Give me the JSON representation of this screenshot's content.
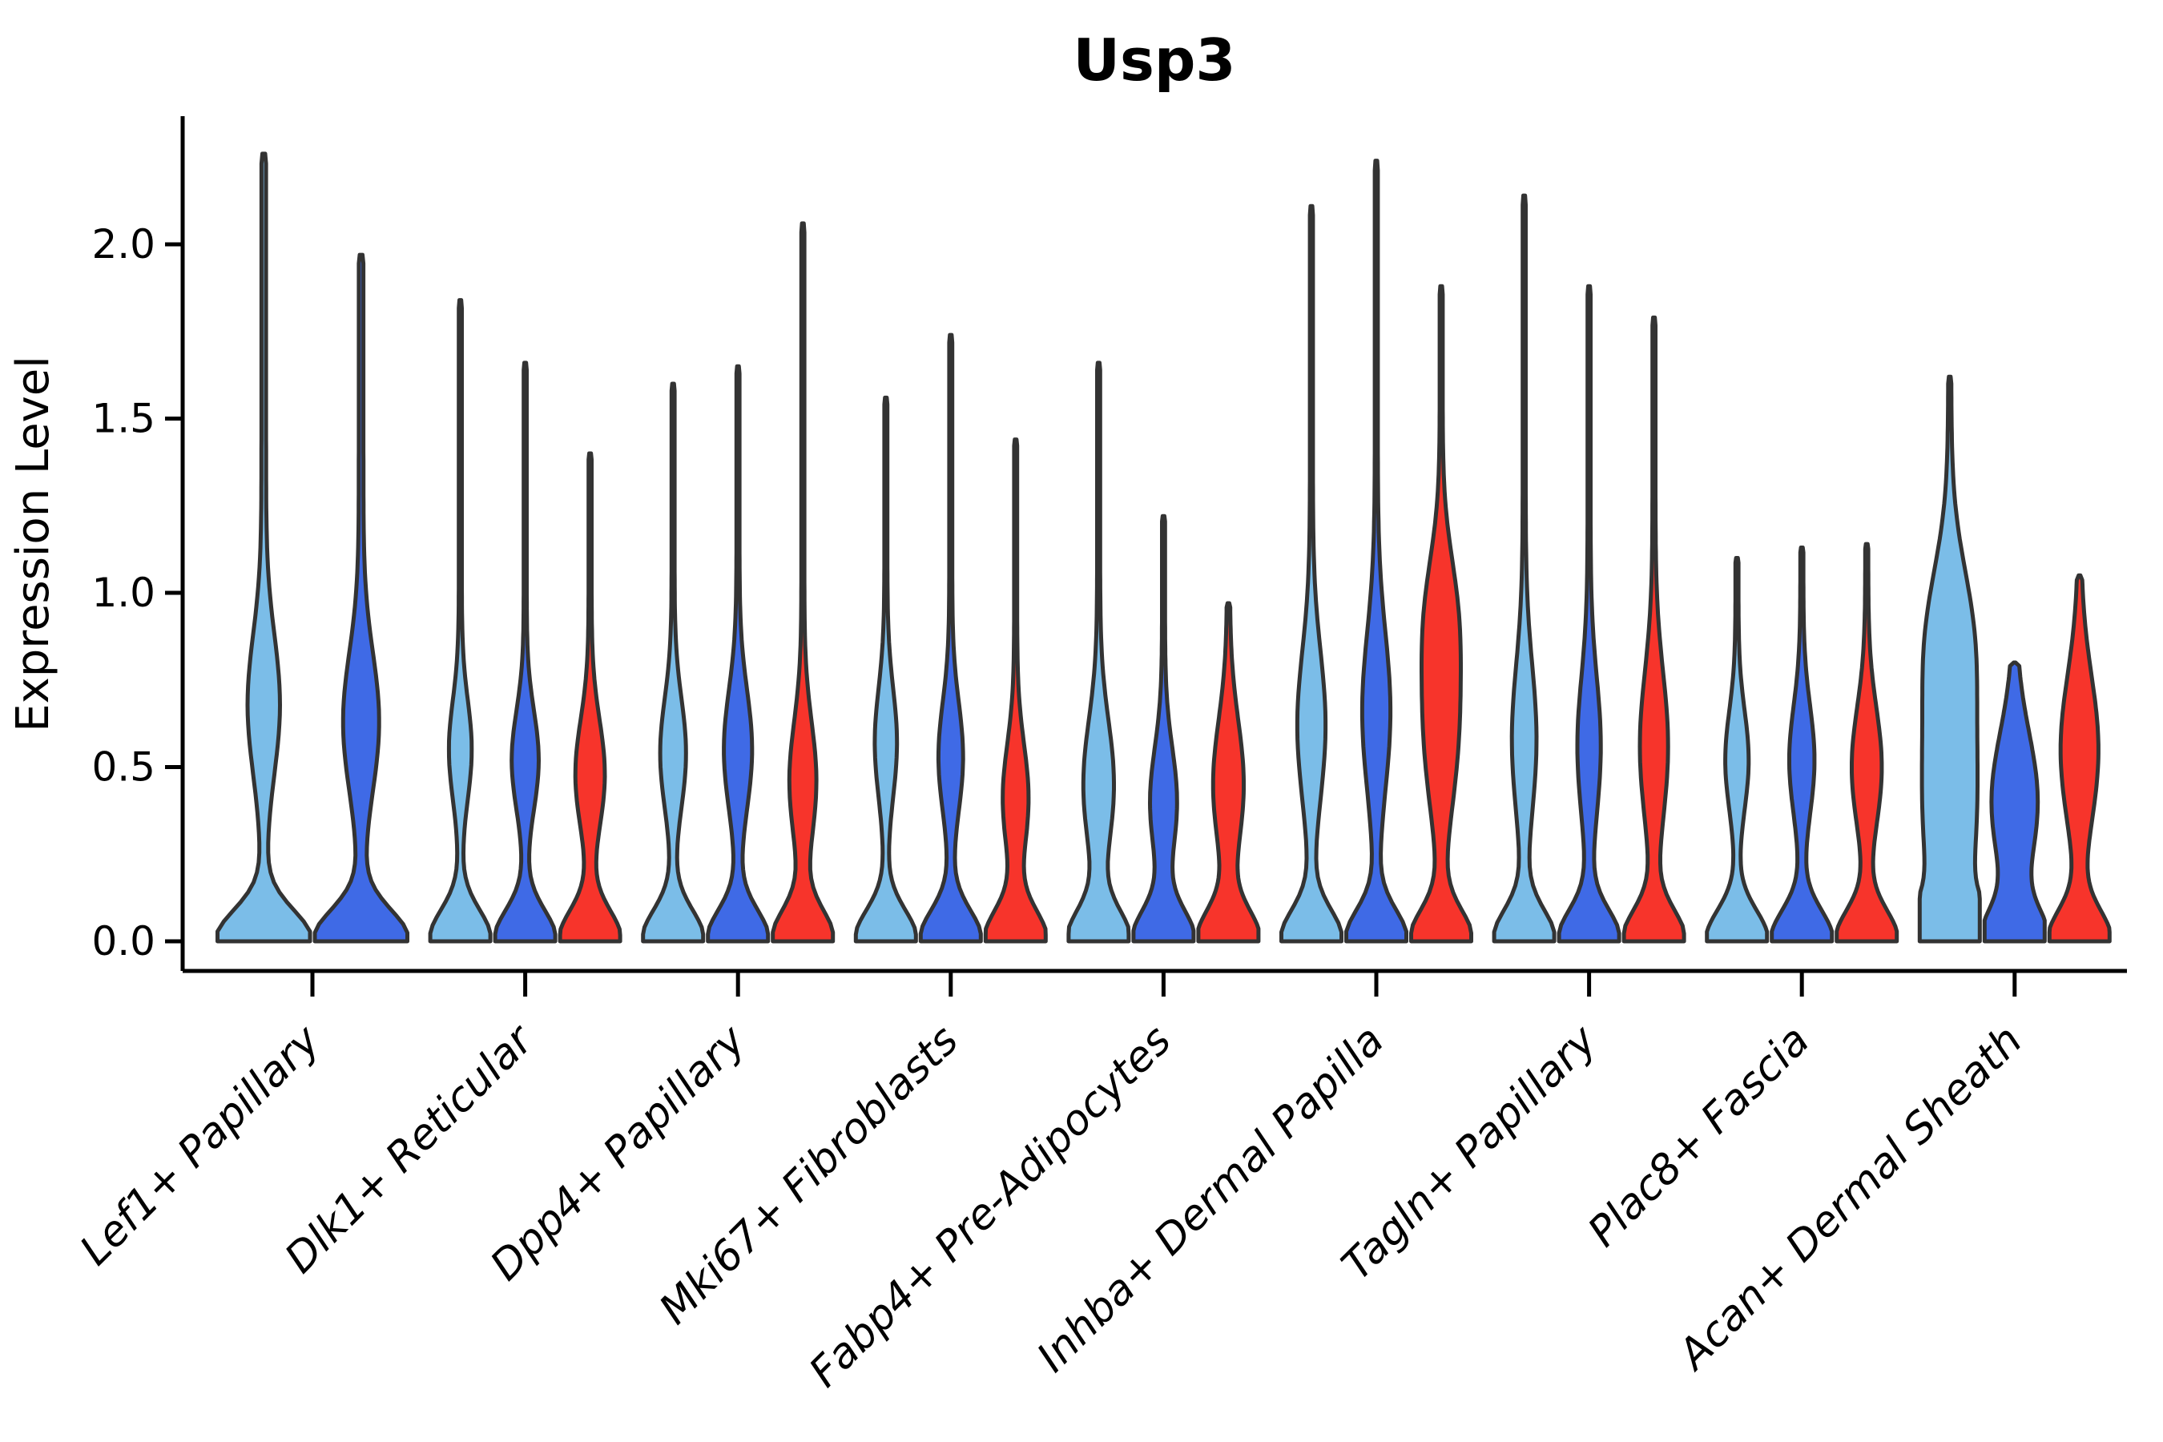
{
  "chart_data": {
    "type": "violin",
    "title": "Usp3",
    "xlabel": "",
    "ylabel": "Expression Level",
    "ylim": [
      -0.09,
      2.37
    ],
    "yticks": [
      0.0,
      0.5,
      1.0,
      1.5,
      2.0
    ],
    "ytick_labels": [
      "0.0",
      "0.5",
      "1.0",
      "1.5",
      "2.0"
    ],
    "grid": false,
    "legend_position": "none",
    "palette": {
      "hue_1": "#7BBDE8",
      "hue_2": "#3F6AE6",
      "hue_3": "#F7342B",
      "outline": "#333333",
      "axis": "#000000"
    },
    "categories": [
      "Lef1+ Papillary",
      "Dlk1+ Reticular",
      "Dpp4+ Papillary",
      "Mki67+ Fibroblasts",
      "Fabp4+ Pre-Adipocytes",
      "Inhba+ Dermal Papilla",
      "Tagln+ Papillary",
      "Plac8+ Fascia",
      "Acan+ Dermal Sheath"
    ],
    "groups": [
      {
        "category": "Lef1+ Papillary",
        "violins": [
          {
            "series": "hue_1",
            "max": 2.26,
            "bulge_center": 0.68,
            "bulge_width": 0.3,
            "bulge_spread": 0.28
          },
          {
            "series": "hue_2",
            "max": 1.97,
            "bulge_center": 0.63,
            "bulge_width": 0.34,
            "bulge_spread": 0.28
          }
        ]
      },
      {
        "category": "Dlk1+ Reticular",
        "violins": [
          {
            "series": "hue_1",
            "max": 1.84,
            "bulge_center": 0.55,
            "bulge_width": 0.33,
            "bulge_spread": 0.2
          },
          {
            "series": "hue_2",
            "max": 1.66,
            "bulge_center": 0.52,
            "bulge_width": 0.4,
            "bulge_spread": 0.2
          },
          {
            "series": "hue_3",
            "max": 1.4,
            "bulge_center": 0.48,
            "bulge_width": 0.44,
            "bulge_spread": 0.22
          }
        ]
      },
      {
        "category": "Dpp4+ Papillary",
        "violins": [
          {
            "series": "hue_1",
            "max": 1.6,
            "bulge_center": 0.54,
            "bulge_width": 0.38,
            "bulge_spread": 0.22
          },
          {
            "series": "hue_2",
            "max": 1.65,
            "bulge_center": 0.55,
            "bulge_width": 0.42,
            "bulge_spread": 0.24
          },
          {
            "series": "hue_3",
            "max": 2.06,
            "bulge_center": 0.46,
            "bulge_width": 0.4,
            "bulge_spread": 0.24
          }
        ]
      },
      {
        "category": "Mki67+ Fibroblasts",
        "violins": [
          {
            "series": "hue_1",
            "max": 1.56,
            "bulge_center": 0.57,
            "bulge_width": 0.32,
            "bulge_spread": 0.22
          },
          {
            "series": "hue_2",
            "max": 1.74,
            "bulge_center": 0.53,
            "bulge_width": 0.36,
            "bulge_spread": 0.22
          },
          {
            "series": "hue_3",
            "max": 1.44,
            "bulge_center": 0.41,
            "bulge_width": 0.38,
            "bulge_spread": 0.22
          }
        ]
      },
      {
        "category": "Fabp4+ Pre-Adipocytes",
        "violins": [
          {
            "series": "hue_1",
            "max": 1.66,
            "bulge_center": 0.45,
            "bulge_width": 0.46,
            "bulge_spread": 0.26
          },
          {
            "series": "hue_2",
            "max": 1.22,
            "bulge_center": 0.4,
            "bulge_width": 0.4,
            "bulge_spread": 0.22
          },
          {
            "series": "hue_3",
            "max": 0.97,
            "bulge_center": 0.45,
            "bulge_width": 0.46,
            "bulge_spread": 0.26
          }
        ]
      },
      {
        "category": "Inhba+ Dermal Papilla",
        "violins": [
          {
            "series": "hue_1",
            "max": 2.11,
            "bulge_center": 0.62,
            "bulge_width": 0.42,
            "bulge_spread": 0.3
          },
          {
            "series": "hue_2",
            "max": 2.24,
            "bulge_center": 0.66,
            "bulge_width": 0.42,
            "bulge_spread": 0.32
          },
          {
            "series": "hue_3",
            "max": 1.88,
            "bulge_center": 0.6,
            "bulge_width": 0.5,
            "bulge_spread": 0.32,
            "bulge2_center": 0.95,
            "bulge2_width": 0.38,
            "bulge2_spread": 0.25
          }
        ]
      },
      {
        "category": "Tagln+ Papillary",
        "violins": [
          {
            "series": "hue_1",
            "max": 2.14,
            "bulge_center": 0.58,
            "bulge_width": 0.36,
            "bulge_spread": 0.3
          },
          {
            "series": "hue_2",
            "max": 1.88,
            "bulge_center": 0.56,
            "bulge_width": 0.34,
            "bulge_spread": 0.28
          },
          {
            "series": "hue_3",
            "max": 1.79,
            "bulge_center": 0.56,
            "bulge_width": 0.42,
            "bulge_spread": 0.3
          }
        ]
      },
      {
        "category": "Plac8+ Fascia",
        "violins": [
          {
            "series": "hue_1",
            "max": 1.1,
            "bulge_center": 0.52,
            "bulge_width": 0.34,
            "bulge_spread": 0.2
          },
          {
            "series": "hue_2",
            "max": 1.13,
            "bulge_center": 0.52,
            "bulge_width": 0.37,
            "bulge_spread": 0.22
          },
          {
            "series": "hue_3",
            "max": 1.14,
            "bulge_center": 0.5,
            "bulge_width": 0.45,
            "bulge_spread": 0.24
          }
        ]
      },
      {
        "category": "Acan+ Dermal Sheath",
        "violins": [
          {
            "series": "hue_1",
            "max": 1.62,
            "bulge_center": 0.4,
            "bulge_width": 0.85,
            "bulge_spread": 0.5,
            "bulge2_center": 0.9,
            "bulge2_width": 0.45,
            "bulge2_spread": 0.28
          },
          {
            "series": "hue_2",
            "max": 0.8,
            "bulge_center": 0.4,
            "bulge_width": 0.72,
            "bulge_spread": 0.28
          },
          {
            "series": "hue_3",
            "max": 1.05,
            "bulge_center": 0.55,
            "bulge_width": 0.58,
            "bulge_spread": 0.3
          }
        ]
      }
    ]
  }
}
